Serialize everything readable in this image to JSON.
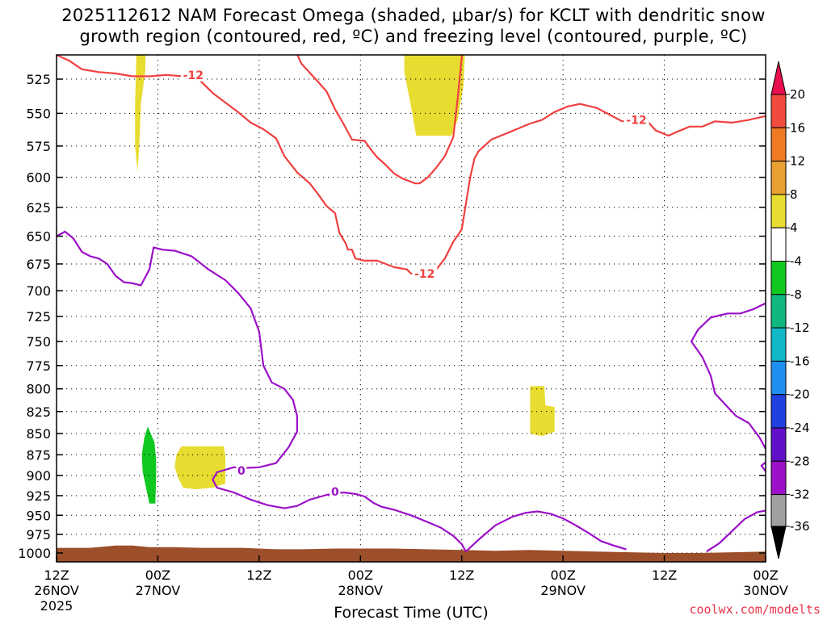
{
  "chart_data": {
    "type": "time-height contour",
    "title_lines": [
      "2025112612 NAM Forecast Omega (shaded, μbar/s) for KCLT with dendritic snow",
      "growth region (contoured, red, ºC) and freezing level (contoured, purple, ºC)"
    ],
    "xlabel": "Forecast Time (UTC)",
    "credit": "coolwx.com/modelts",
    "colors": {
      "red": "#f04040",
      "purple": "#9b10c8",
      "terrain": "#9c4f2a",
      "yellow": "#e8dc30",
      "green": "#10c820"
    },
    "y_ticks": [
      525,
      550,
      575,
      600,
      625,
      650,
      675,
      700,
      725,
      750,
      775,
      800,
      825,
      850,
      875,
      900,
      925,
      950,
      975,
      1000
    ],
    "x_range_hours": [
      0,
      84
    ],
    "x_ticks": [
      {
        "hour": 0,
        "l1": "12Z",
        "l2": "26NOV",
        "l3": "2025"
      },
      {
        "hour": 12,
        "l1": "00Z",
        "l2": "27NOV",
        "l3": ""
      },
      {
        "hour": 24,
        "l1": "12Z",
        "l2": "",
        "l3": ""
      },
      {
        "hour": 36,
        "l1": "00Z",
        "l2": "28NOV",
        "l3": ""
      },
      {
        "hour": 48,
        "l1": "12Z",
        "l2": "",
        "l3": ""
      },
      {
        "hour": 60,
        "l1": "00Z",
        "l2": "29NOV",
        "l3": ""
      },
      {
        "hour": 72,
        "l1": "12Z",
        "l2": "",
        "l3": ""
      },
      {
        "hour": 84,
        "l1": "00Z",
        "l2": "30NOV",
        "l3": ""
      }
    ],
    "colorbar": {
      "labels": [
        "20",
        "16",
        "12",
        "8",
        "4",
        "-4",
        "-8",
        "-12",
        "-16",
        "-20",
        "-24",
        "-28",
        "-32",
        "-36"
      ],
      "colors": [
        "#e8104f",
        "#f04b3c",
        "#f07a24",
        "#e8a030",
        "#e8dc30",
        "#ffffff",
        "#10c820",
        "#10b880",
        "#10b8c8",
        "#2090f0",
        "#2040e0",
        "#6010c8",
        "#9b10c8",
        "#a0a0a0",
        "#000000"
      ]
    },
    "contour_labels": [
      {
        "text": "-12",
        "color": "red",
        "hour": 16.2,
        "p": 522
      },
      {
        "text": "-12",
        "color": "red",
        "hour": 43.6,
        "p": 684
      },
      {
        "text": "-12",
        "color": "red",
        "hour": 68.7,
        "p": 555
      },
      {
        "text": "0",
        "color": "purple",
        "hour": 21.9,
        "p": 894
      },
      {
        "text": "0",
        "color": "purple",
        "hour": 33.0,
        "p": 920
      }
    ],
    "dgz_minus12_upper": [
      [
        0,
        508
      ],
      [
        1.5,
        512
      ],
      [
        3,
        518
      ],
      [
        5,
        520
      ],
      [
        7,
        521
      ],
      [
        9,
        523
      ],
      [
        11,
        523
      ],
      [
        13,
        522
      ],
      [
        15,
        523
      ],
      [
        17,
        526
      ],
      [
        18.5,
        535
      ],
      [
        20,
        542
      ],
      [
        21.5,
        549
      ],
      [
        23,
        557
      ],
      [
        24.5,
        562
      ],
      [
        26,
        569
      ],
      [
        27,
        583
      ],
      [
        28.5,
        596
      ],
      [
        30,
        605
      ],
      [
        31,
        614
      ],
      [
        32,
        624
      ],
      [
        33,
        630
      ],
      [
        33.5,
        647
      ],
      [
        34.3,
        657
      ],
      [
        34.5,
        662
      ],
      [
        35,
        662
      ],
      [
        35.4,
        670
      ],
      [
        36.5,
        672
      ],
      [
        38,
        672
      ],
      [
        40,
        678
      ],
      [
        41.5,
        680
      ],
      [
        42,
        684
      ],
      [
        44,
        683
      ],
      [
        45,
        680
      ],
      [
        46,
        670
      ],
      [
        47,
        655
      ],
      [
        48,
        644
      ],
      [
        48.5,
        622
      ],
      [
        49,
        600
      ],
      [
        49.5,
        585
      ],
      [
        50,
        579
      ],
      [
        51.5,
        570
      ],
      [
        53,
        566
      ],
      [
        54.5,
        562
      ],
      [
        56,
        558
      ],
      [
        57.5,
        555
      ],
      [
        59,
        549
      ],
      [
        60.5,
        545
      ],
      [
        62,
        543
      ],
      [
        64,
        546
      ],
      [
        65.5,
        551
      ],
      [
        67,
        556
      ],
      [
        68.7,
        555
      ],
      [
        70,
        556
      ],
      [
        71,
        563
      ],
      [
        72.5,
        567
      ],
      [
        73.5,
        564
      ],
      [
        75,
        560
      ],
      [
        76.5,
        560
      ],
      [
        78,
        556
      ],
      [
        80,
        557
      ],
      [
        82,
        555
      ],
      [
        84,
        552
      ]
    ],
    "dgz_minus12_lower": [
      [
        27.5,
        495
      ],
      [
        29,
        514
      ],
      [
        31,
        527
      ],
      [
        32,
        534
      ],
      [
        33,
        547
      ],
      [
        34,
        558
      ],
      [
        35,
        570
      ],
      [
        36.5,
        571
      ],
      [
        37.5,
        580
      ],
      [
        38,
        584
      ],
      [
        39,
        590
      ],
      [
        40,
        597
      ],
      [
        41,
        601
      ],
      [
        42.5,
        605
      ],
      [
        43,
        605
      ],
      [
        44,
        600
      ],
      [
        45,
        592
      ],
      [
        46,
        583
      ],
      [
        47,
        568
      ],
      [
        47.5,
        540
      ],
      [
        48,
        510
      ],
      [
        48.5,
        490
      ]
    ],
    "freezing_upper": [
      [
        0,
        650
      ],
      [
        1,
        646
      ],
      [
        2,
        652
      ],
      [
        3,
        664
      ],
      [
        4,
        668
      ],
      [
        5,
        670
      ],
      [
        6,
        675
      ],
      [
        7,
        686
      ],
      [
        8,
        692
      ],
      [
        9,
        693
      ],
      [
        10,
        695
      ],
      [
        11,
        680
      ],
      [
        11.5,
        660
      ],
      [
        12.5,
        662
      ],
      [
        14,
        663
      ],
      [
        16,
        668
      ],
      [
        18,
        680
      ],
      [
        20,
        690
      ],
      [
        21.5,
        702
      ],
      [
        23,
        717
      ],
      [
        24,
        740
      ],
      [
        24.5,
        775
      ],
      [
        25.5,
        793
      ],
      [
        27,
        800
      ],
      [
        28,
        812
      ],
      [
        28.5,
        830
      ],
      [
        28.5,
        848
      ],
      [
        27.5,
        866
      ],
      [
        26,
        885
      ],
      [
        24,
        890
      ],
      [
        22,
        891
      ],
      [
        21,
        890
      ],
      [
        20,
        893
      ],
      [
        19,
        896
      ],
      [
        18.5,
        905
      ],
      [
        19,
        915
      ],
      [
        21,
        921
      ],
      [
        23,
        930
      ],
      [
        25,
        937
      ],
      [
        27,
        941
      ],
      [
        28.5,
        938
      ],
      [
        30,
        930
      ],
      [
        32,
        924
      ],
      [
        34,
        921
      ],
      [
        35.5,
        923
      ],
      [
        36.5,
        926
      ],
      [
        37.5,
        934
      ],
      [
        38.5,
        939
      ],
      [
        40,
        943
      ],
      [
        42,
        950
      ],
      [
        44,
        959
      ],
      [
        45.5,
        966
      ],
      [
        47,
        977
      ],
      [
        48,
        988
      ],
      [
        48.5,
        998
      ]
    ],
    "freezing_mid": [
      [
        48.5,
        998
      ],
      [
        50,
        982
      ],
      [
        52,
        963
      ],
      [
        54,
        952
      ],
      [
        55.5,
        947
      ],
      [
        57,
        945
      ],
      [
        58.5,
        948
      ],
      [
        60,
        954
      ],
      [
        61.5,
        963
      ],
      [
        63,
        973
      ],
      [
        64.5,
        984
      ],
      [
        66,
        990
      ],
      [
        67.5,
        995
      ]
    ],
    "freezing_right": [
      [
        84,
        712
      ],
      [
        82.5,
        718
      ],
      [
        81,
        722
      ],
      [
        79.5,
        722
      ],
      [
        77.5,
        726
      ],
      [
        76,
        738
      ],
      [
        75.2,
        750
      ],
      [
        76.5,
        766
      ],
      [
        77.5,
        786
      ],
      [
        78,
        805
      ],
      [
        79.5,
        820
      ],
      [
        80.5,
        830
      ],
      [
        82,
        838
      ],
      [
        83.3,
        855
      ],
      [
        84,
        868
      ]
    ],
    "freezing_right2": [
      [
        84,
        884
      ],
      [
        83.5,
        888
      ],
      [
        84,
        895
      ]
    ],
    "freezing_br": [
      [
        77,
        998
      ],
      [
        78.5,
        987
      ],
      [
        80,
        971
      ],
      [
        81.5,
        955
      ],
      [
        83,
        946
      ],
      [
        84,
        944
      ]
    ]
  }
}
